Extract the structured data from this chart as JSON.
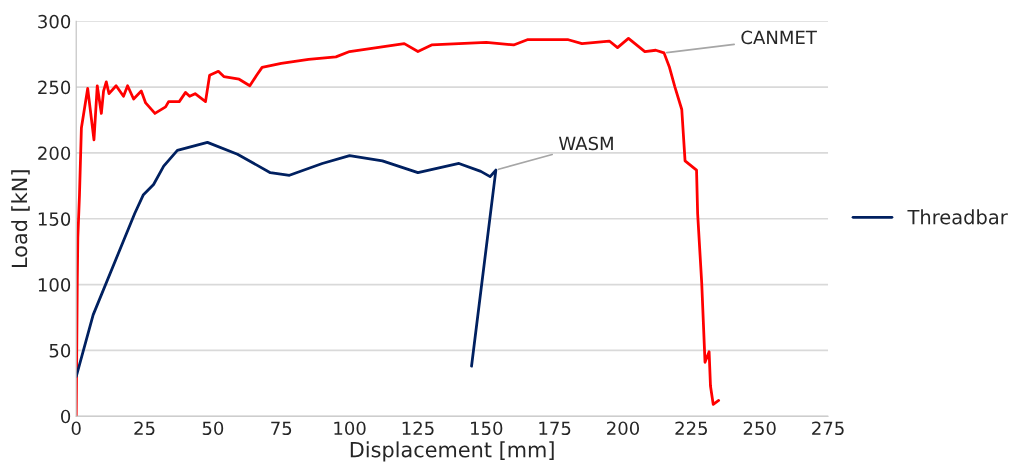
{
  "chart_data": {
    "type": "line",
    "xlabel": "Displacement [mm]",
    "ylabel": "Load [kN]",
    "xlim": [
      0,
      275
    ],
    "xticks": [
      0,
      25,
      50,
      75,
      100,
      125,
      150,
      175,
      200,
      225,
      250,
      275
    ],
    "ylim": [
      0,
      300
    ],
    "yticks": [
      0,
      50,
      100,
      150,
      200,
      250,
      300
    ],
    "grid": "y",
    "legend": "right",
    "marker": "none",
    "line_style": "solid",
    "series": [
      {
        "color": "#ff0000",
        "x": [
          0,
          0.4,
          0.6,
          1.2,
          1.9,
          4.2,
          6.5,
          7.7,
          9.2,
          10,
          11,
          12,
          14.6,
          17.3,
          18.8,
          21,
          23.8,
          25.4,
          28.8,
          32.7,
          33.8,
          37.7,
          40,
          41.5,
          43.5,
          47.3,
          48.8,
          52,
          54,
          59.6,
          63.5,
          66,
          68,
          75,
          85,
          95,
          100,
          110,
          120,
          125,
          130,
          150,
          160,
          165,
          180,
          185,
          195,
          198,
          202,
          208,
          212,
          215,
          217,
          219,
          221.5,
          222.7,
          226.9,
          227.3,
          228.8,
          230,
          231.5,
          232,
          233,
          235
        ],
        "values": [
          0,
          103,
          136,
          168,
          219,
          249,
          210,
          251,
          230,
          247,
          254,
          245,
          251,
          243,
          251,
          241,
          247,
          238,
          230,
          235,
          239,
          239,
          246,
          243,
          245,
          239,
          259,
          262,
          258,
          256,
          251,
          259,
          265,
          268,
          271,
          273,
          277,
          280,
          283,
          277,
          282,
          284,
          282,
          286,
          286,
          283,
          285,
          280,
          287,
          277,
          278,
          276,
          265,
          250,
          233,
          194,
          187,
          154,
          101,
          41,
          49,
          23,
          9,
          12
        ]
      },
      {
        "name": "Threadbar",
        "color": "#002060",
        "x": [
          0,
          6.2,
          21.4,
          24.5,
          28.3,
          32,
          37,
          48,
          59,
          71,
          78,
          90,
          100,
          112,
          125,
          140,
          148,
          151.4,
          153.5,
          144.6
        ],
        "values": [
          30,
          77,
          154,
          168,
          176,
          190,
          202,
          208,
          199,
          185,
          183,
          192,
          198,
          194,
          185,
          192,
          186,
          182,
          187,
          38
        ]
      }
    ],
    "annotations": [
      {
        "text": "CANMET",
        "x": 215,
        "y": 276
      },
      {
        "text": "WASM",
        "x": 153.5,
        "y": 187
      }
    ]
  }
}
